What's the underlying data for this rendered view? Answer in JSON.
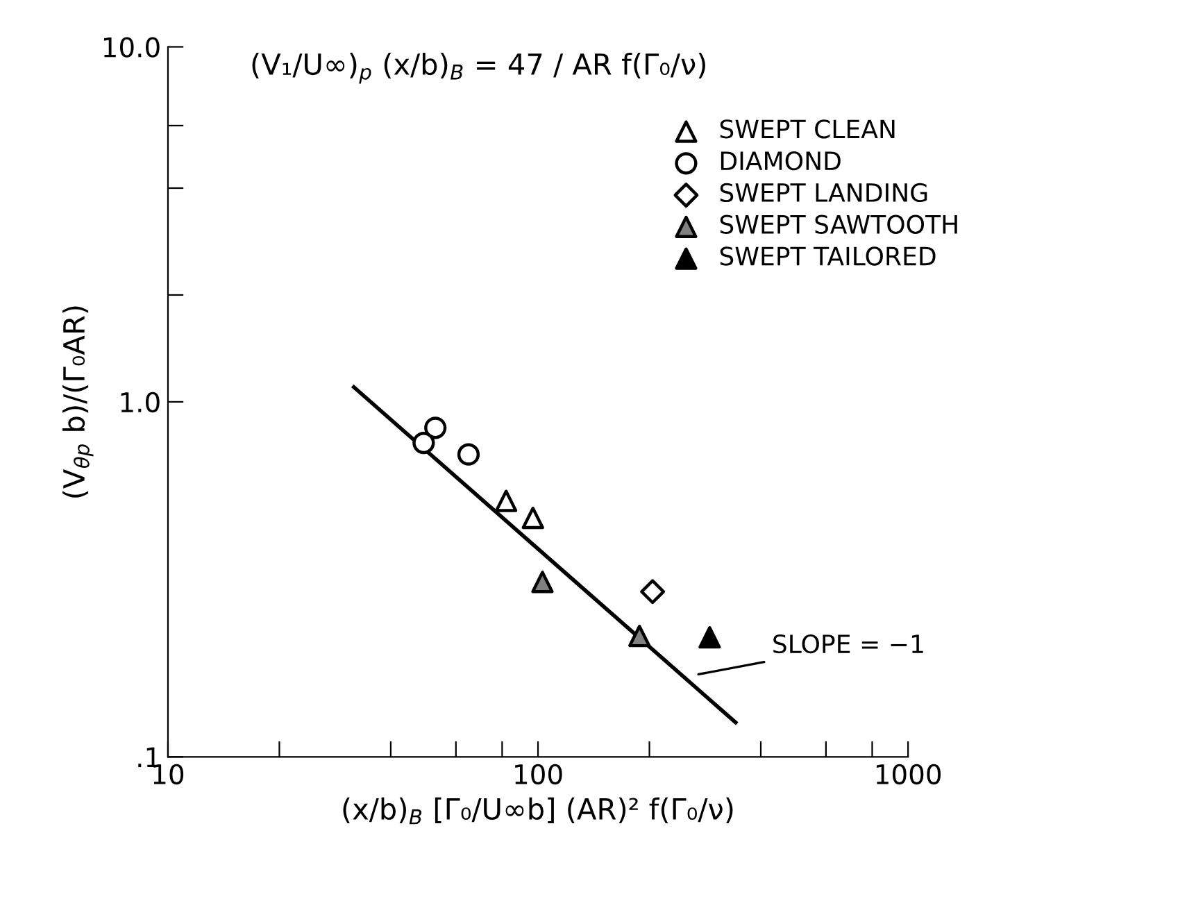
{
  "chart_data": {
    "type": "scatter",
    "title": "(V₁/U∞)$_{p}$ (x/b)$_{B}$ = 47 / AR f(Γ₀/ν)",
    "xlabel": "(x/b)$_{B}$ [Γ₀/U∞b] (AR)² f(Γ₀/ν)",
    "ylabel": "(V$_{θp}$ b)/(Γ₀AR)",
    "log": "xy",
    "xlim": [
      10,
      1000
    ],
    "ylim": [
      0.1,
      10
    ],
    "xticks": [
      10,
      {
        "value": 20,
        "label": null
      },
      {
        "value": 40,
        "label": null
      },
      {
        "value": 60,
        "label": null
      },
      {
        "value": 80,
        "label": null
      },
      100,
      {
        "value": 200,
        "label": null
      },
      {
        "value": 400,
        "label": null
      },
      {
        "value": 600,
        "label": null
      },
      {
        "value": 800,
        "label": null
      },
      1000
    ],
    "yticks": [
      {
        "value": 0.1,
        "label": ".1"
      },
      {
        "value": 2,
        "label": null
      },
      {
        "value": 4,
        "label": null
      },
      {
        "value": 6,
        "label": null
      },
      {
        "value": 1,
        "label": "1.0"
      },
      {
        "value": 10,
        "label": "10.0"
      }
    ],
    "grid": false,
    "legend": "top right",
    "series": [
      {
        "name": "SWEPT CLEAN",
        "color": "#ffffff",
        "marker": "triangle",
        "x": [
          82.0,
          96.9
        ],
        "values": [
          0.526,
          0.471
        ]
      },
      {
        "name": "DIAMOND",
        "color": "#ffffff",
        "marker": "circle",
        "x": [
          52.8,
          49.1,
          64.9
        ],
        "values": [
          0.845,
          0.766,
          0.711
        ]
      },
      {
        "name": "SWEPT LANDING",
        "color": "#ffffff",
        "marker": "diamond",
        "x": [
          204
        ],
        "values": [
          0.292
        ]
      },
      {
        "name": "SWEPT SAWTOOTH",
        "color": "#808080",
        "marker": "triangle",
        "x": [
          102.8,
          188
        ],
        "values": [
          0.311,
          0.219
        ]
      },
      {
        "name": "SWEPT TAILORED",
        "color": "#000000",
        "marker": "triangle",
        "x": [
          291
        ],
        "values": [
          0.217
        ]
      },
      {
        "type": "line",
        "color": "#000000",
        "marker": "none",
        "x": [
          31.8,
          342
        ],
        "values": [
          1.1,
          0.125
        ]
      }
    ],
    "annotations": [
      {
        "text": "SLOPE = −1",
        "x": 265,
        "y": 0.17
      }
    ]
  }
}
